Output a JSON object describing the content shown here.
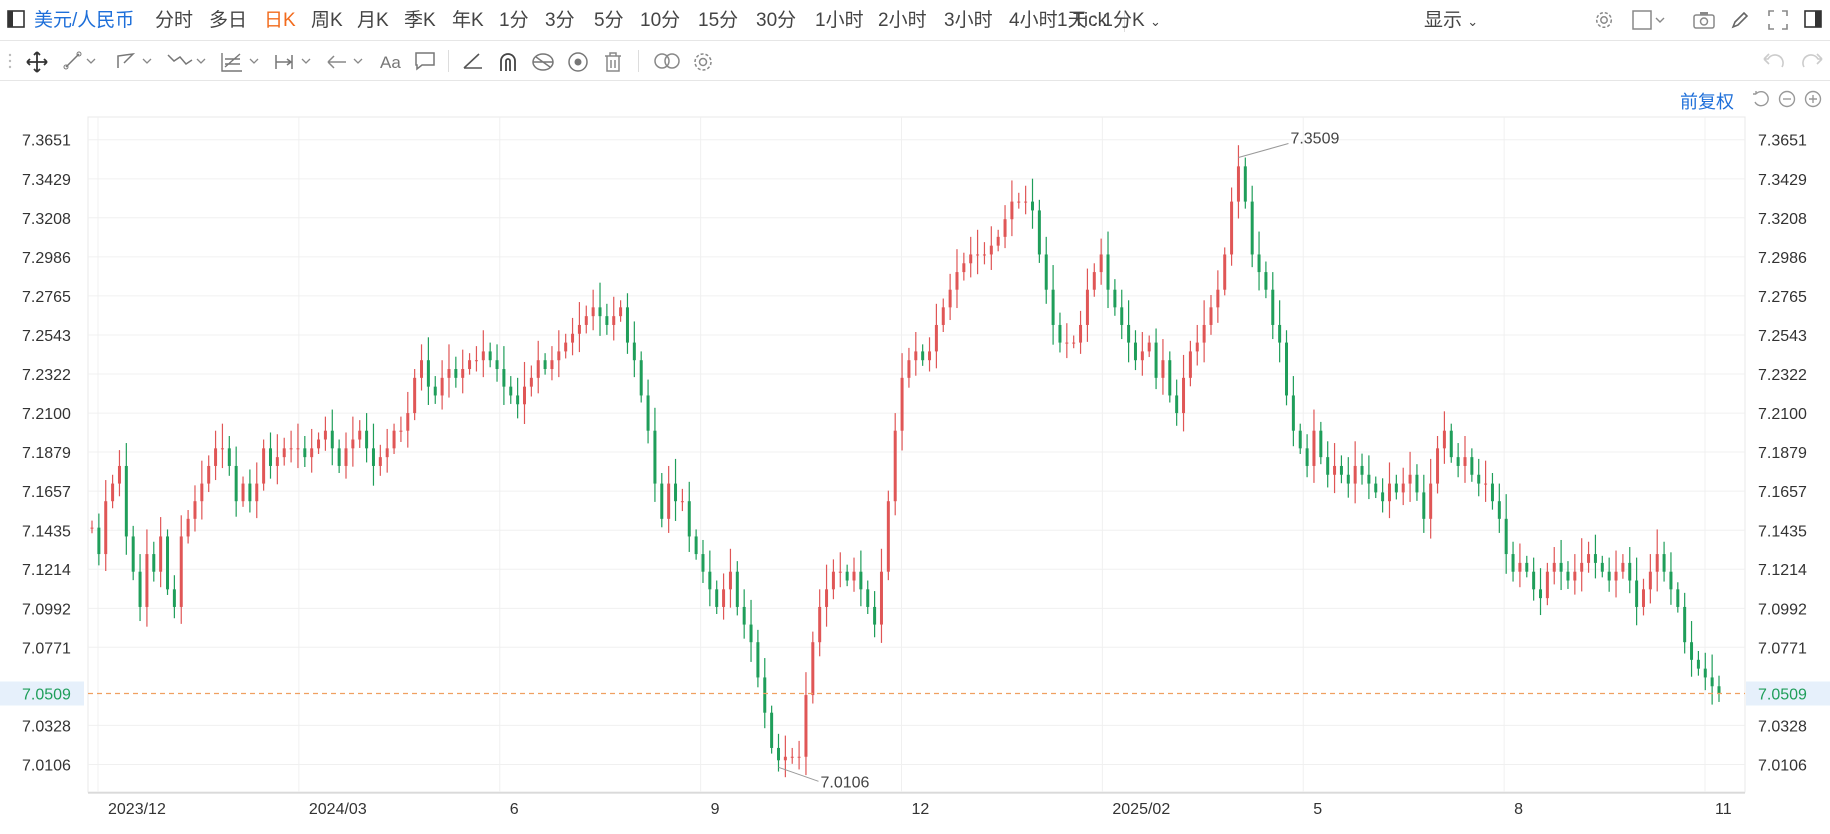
{
  "toolbar": {
    "pair_label": "美元/人民币",
    "periods": [
      "分时",
      "多日",
      "日K",
      "周K",
      "月K",
      "季K",
      "年K",
      "1分",
      "3分",
      "5分",
      "10分",
      "15分",
      "30分",
      "1小时",
      "2小时",
      "3小时",
      "4小时",
      "Tick"
    ],
    "active_period": "日K",
    "range_label": "1天 : 1分K",
    "display_label": "显示"
  },
  "drawing_tools": [
    "move-icon",
    "line-tool-icon",
    "polyline-tool-icon",
    "wave-tool-icon",
    "fib-tool-icon",
    "measure-tool-icon",
    "arrow-tool-icon",
    "text-tool-icon",
    "comment-tool-icon",
    "angle-tool-icon",
    "magnet-icon",
    "hide-drawings-icon",
    "eye-icon",
    "trash-icon",
    "link-icon",
    "settings-icon"
  ],
  "chart_header": {
    "adjust_label": "前复权"
  },
  "colors": {
    "up": "#e05656",
    "down": "#1f9e5a",
    "accent": "#1e6fd9",
    "active": "#f26b1d",
    "current_line": "#f0a060",
    "current_bg": "#e6f0fb"
  },
  "chart_data": {
    "type": "candlestick",
    "title": "",
    "y_ticks": [
      "7.3651",
      "7.3429",
      "7.3208",
      "7.2986",
      "7.2765",
      "7.2543",
      "7.2322",
      "7.2100",
      "7.1879",
      "7.1657",
      "7.1435",
      "7.1214",
      "7.0992",
      "7.0771",
      "7.0328",
      "7.0106"
    ],
    "ylim": [
      6.995,
      7.378
    ],
    "x_ticks": [
      "2023/12",
      "2024/03",
      "6",
      "9",
      "12",
      "2025/02",
      "5",
      "8",
      "11"
    ],
    "current_price": "7.0509",
    "max_annotation": "7.3509",
    "min_annotation": "7.0106",
    "close_series": [
      7.145,
      7.13,
      7.16,
      7.17,
      7.18,
      7.14,
      7.12,
      7.1,
      7.13,
      7.12,
      7.14,
      7.11,
      7.1,
      7.14,
      7.15,
      7.16,
      7.17,
      7.18,
      7.19,
      7.19,
      7.18,
      7.16,
      7.17,
      7.16,
      7.17,
      7.19,
      7.18,
      7.185,
      7.19,
      7.19,
      7.19,
      7.185,
      7.19,
      7.195,
      7.2,
      7.19,
      7.18,
      7.19,
      7.195,
      7.2,
      7.19,
      7.18,
      7.185,
      7.19,
      7.2,
      7.2,
      7.21,
      7.23,
      7.24,
      7.225,
      7.22,
      7.23,
      7.235,
      7.23,
      7.235,
      7.24,
      7.24,
      7.245,
      7.24,
      7.235,
      7.225,
      7.22,
      7.215,
      7.225,
      7.23,
      7.24,
      7.235,
      7.24,
      7.245,
      7.25,
      7.255,
      7.26,
      7.265,
      7.27,
      7.265,
      7.26,
      7.265,
      7.27,
      7.25,
      7.24,
      7.22,
      7.2,
      7.17,
      7.15,
      7.17,
      7.16,
      7.16,
      7.14,
      7.13,
      7.12,
      7.11,
      7.1,
      7.11,
      7.12,
      7.1,
      7.09,
      7.08,
      7.06,
      7.04,
      7.02,
      7.013,
      7.015,
      7.015,
      7.015,
      7.05,
      7.08,
      7.1,
      7.11,
      7.12,
      7.12,
      7.115,
      7.12,
      7.11,
      7.1,
      7.09,
      7.12,
      7.16,
      7.2,
      7.23,
      7.24,
      7.245,
      7.24,
      7.245,
      7.26,
      7.27,
      7.28,
      7.29,
      7.295,
      7.3,
      7.3,
      7.3,
      7.305,
      7.31,
      7.32,
      7.33,
      7.33,
      7.33,
      7.325,
      7.3,
      7.28,
      7.26,
      7.25,
      7.25,
      7.25,
      7.26,
      7.28,
      7.29,
      7.3,
      7.28,
      7.27,
      7.26,
      7.25,
      7.24,
      7.245,
      7.25,
      7.23,
      7.24,
      7.22,
      7.21,
      7.23,
      7.245,
      7.25,
      7.26,
      7.27,
      7.28,
      7.3,
      7.33,
      7.35,
      7.33,
      7.3,
      7.29,
      7.28,
      7.26,
      7.25,
      7.22,
      7.2,
      7.19,
      7.18,
      7.2,
      7.185,
      7.175,
      7.18,
      7.175,
      7.17,
      7.18,
      7.175,
      7.17,
      7.165,
      7.16,
      7.17,
      7.165,
      7.17,
      7.175,
      7.165,
      7.15,
      7.17,
      7.19,
      7.2,
      7.185,
      7.18,
      7.185,
      7.175,
      7.17,
      7.17,
      7.16,
      7.15,
      7.13,
      7.12,
      7.125,
      7.12,
      7.11,
      7.105,
      7.12,
      7.125,
      7.12,
      7.115,
      7.12,
      7.125,
      7.13,
      7.125,
      7.12,
      7.115,
      7.12,
      7.125,
      7.115,
      7.1,
      7.11,
      7.12,
      7.13,
      7.12,
      7.11,
      7.1,
      7.08,
      7.07,
      7.065,
      7.06,
      7.055,
      7.0509
    ]
  }
}
